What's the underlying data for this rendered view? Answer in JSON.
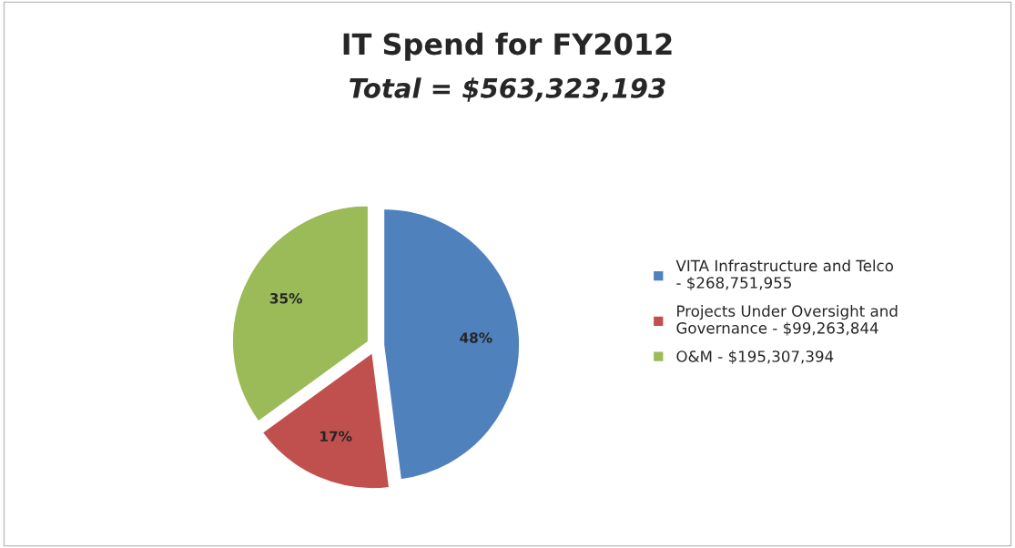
{
  "chart_data": {
    "type": "pie",
    "title": "IT Spend for FY2012",
    "subtitle": "Total = $563,323,193",
    "categories": [
      "VITA Infrastructure and Telco - $268,751,955",
      "Projects Under Oversight and Governance - $99,263,844",
      "O&M - $195,307,394"
    ],
    "values": [
      48,
      17,
      35
    ],
    "colors": [
      "#4f81bd",
      "#c0504d",
      "#9bbb59"
    ],
    "value_labels": [
      "48%",
      "17%",
      "35%"
    ],
    "legend": "right"
  }
}
